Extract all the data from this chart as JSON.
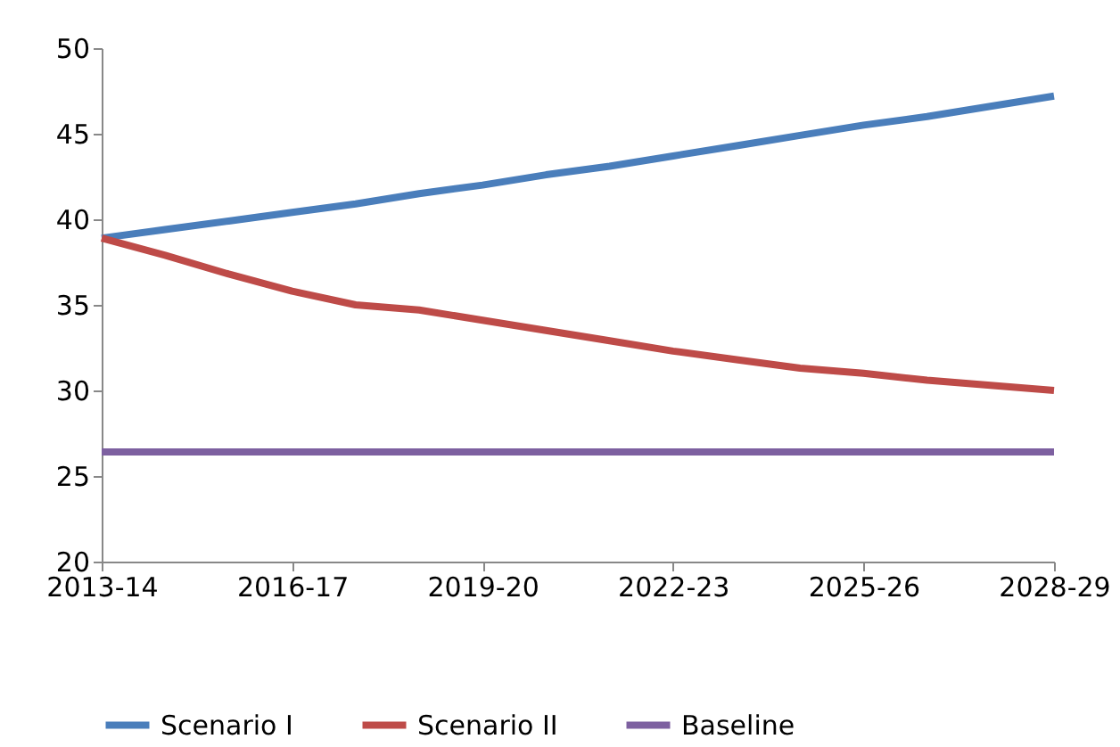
{
  "chart_data": {
    "type": "line",
    "categories": [
      "2013-14",
      null,
      null,
      "2016-17",
      null,
      null,
      "2019-20",
      null,
      null,
      "2022-23",
      null,
      null,
      "2025-26",
      null,
      null,
      "2028-29"
    ],
    "series": [
      {
        "name": "Scenario I",
        "color": "#4a7ebb",
        "values": [
          38.9,
          39.4,
          39.9,
          40.4,
          40.9,
          41.5,
          42.0,
          42.6,
          43.1,
          43.7,
          44.3,
          44.9,
          45.5,
          46.0,
          46.6,
          47.2
        ]
      },
      {
        "name": "Scenario II",
        "color": "#be4b48",
        "values": [
          38.9,
          37.9,
          36.8,
          35.8,
          35.0,
          34.7,
          34.1,
          33.5,
          32.9,
          32.3,
          31.8,
          31.3,
          31.0,
          30.6,
          30.3,
          30.0
        ]
      },
      {
        "name": "Baseline",
        "color": "#7d60a0",
        "values": [
          26.4,
          26.4,
          26.4,
          26.4,
          26.4,
          26.4,
          26.4,
          26.4,
          26.4,
          26.4,
          26.4,
          26.4,
          26.4,
          26.4,
          26.4,
          26.4
        ]
      }
    ],
    "ylim": [
      20,
      50
    ],
    "yticks": [
      20,
      25,
      30,
      35,
      40,
      45,
      50
    ],
    "grid": false,
    "legend": "bottom",
    "marker": "none",
    "line_style": "solid"
  }
}
